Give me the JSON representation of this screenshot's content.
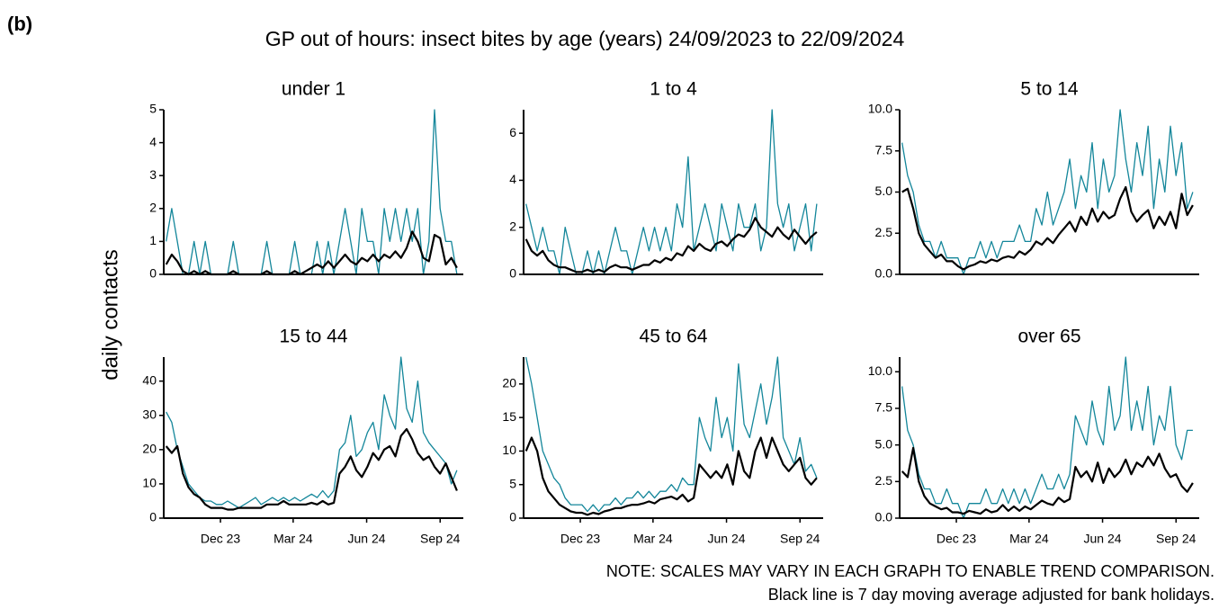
{
  "figure": {
    "panel_label": "(b)",
    "title": "GP out of hours: insect bites by age (years) 24/09/2023 to 22/09/2024",
    "y_label": "daily contacts",
    "notes": [
      "NOTE: SCALES MAY VARY IN EACH GRAPH TO ENABLE TREND COMPARISON.",
      "Black line is 7 day moving average adjusted for bank holidays."
    ]
  },
  "chart_data": [
    {
      "type": "line",
      "title": "under 1",
      "xlim": [
        -3,
        372
      ],
      "ylim": [
        0,
        5
      ],
      "yticks": [
        0,
        1,
        2,
        3,
        4,
        5
      ],
      "x": [
        0,
        7,
        14,
        21,
        28,
        35,
        42,
        49,
        56,
        63,
        70,
        77,
        84,
        91,
        98,
        105,
        112,
        119,
        126,
        133,
        140,
        147,
        154,
        161,
        168,
        175,
        182,
        189,
        196,
        203,
        210,
        217,
        224,
        231,
        238,
        245,
        252,
        259,
        266,
        273,
        280,
        287,
        294,
        301,
        308,
        315,
        322,
        329,
        336,
        343,
        350,
        357,
        364
      ],
      "series": [
        {
          "color": "#13869a",
          "values": [
            1,
            2,
            1,
            0,
            0,
            1,
            0,
            1,
            0,
            0,
            0,
            0,
            1,
            0,
            0,
            0,
            0,
            0,
            1,
            0,
            0,
            0,
            0,
            1,
            0,
            0,
            0,
            1,
            0,
            1,
            0,
            1,
            2,
            1,
            0,
            2,
            1,
            1,
            0,
            2,
            1,
            2,
            1,
            2,
            1,
            2,
            0,
            1,
            5,
            2,
            1,
            1,
            0
          ]
        },
        {
          "color": "#000000",
          "values": [
            0.3,
            0.6,
            0.4,
            0.1,
            0,
            0.1,
            0,
            0.1,
            0,
            0,
            0,
            0,
            0.1,
            0,
            0,
            0,
            0,
            0,
            0.1,
            0,
            0,
            0,
            0,
            0.1,
            0,
            0.1,
            0.2,
            0.3,
            0.2,
            0.4,
            0.2,
            0.4,
            0.6,
            0.4,
            0.3,
            0.5,
            0.4,
            0.6,
            0.4,
            0.6,
            0.5,
            0.7,
            0.5,
            0.8,
            1.3,
            1.0,
            0.5,
            0.4,
            1.2,
            1.1,
            0.3,
            0.5,
            0.2
          ]
        }
      ]
    },
    {
      "type": "line",
      "title": "1 to 4",
      "xlim": [
        -3,
        372
      ],
      "ylim": [
        0,
        7
      ],
      "yticks": [
        0,
        2,
        4,
        6
      ],
      "x": [
        0,
        7,
        14,
        21,
        28,
        35,
        42,
        49,
        56,
        63,
        70,
        77,
        84,
        91,
        98,
        105,
        112,
        119,
        126,
        133,
        140,
        147,
        154,
        161,
        168,
        175,
        182,
        189,
        196,
        203,
        210,
        217,
        224,
        231,
        238,
        245,
        252,
        259,
        266,
        273,
        280,
        287,
        294,
        301,
        308,
        315,
        322,
        329,
        336,
        343,
        350,
        357,
        364
      ],
      "series": [
        {
          "color": "#13869a",
          "values": [
            3,
            2,
            1,
            2,
            1,
            1,
            0,
            2,
            1,
            0,
            0,
            1,
            0,
            1,
            0,
            1,
            2,
            1,
            1,
            0,
            1,
            2,
            1,
            2,
            1,
            2,
            1,
            3,
            2,
            5,
            1,
            2,
            3,
            2,
            1,
            3,
            2,
            1,
            3,
            2,
            2,
            3,
            1,
            2,
            7,
            3,
            2,
            3,
            1,
            2,
            3,
            1,
            3
          ]
        },
        {
          "color": "#000000",
          "values": [
            1.5,
            1.0,
            0.8,
            1.0,
            0.6,
            0.4,
            0.3,
            0.3,
            0.2,
            0.1,
            0.1,
            0.2,
            0.1,
            0.2,
            0.1,
            0.3,
            0.4,
            0.3,
            0.3,
            0.2,
            0.3,
            0.4,
            0.4,
            0.6,
            0.5,
            0.7,
            0.6,
            0.9,
            0.8,
            1.2,
            1.0,
            1.3,
            1.1,
            1.0,
            1.3,
            1.4,
            1.2,
            1.5,
            1.7,
            1.6,
            1.9,
            2.4,
            2.0,
            1.8,
            1.6,
            2.0,
            1.7,
            1.5,
            1.9,
            1.6,
            1.3,
            1.6,
            1.8
          ]
        }
      ]
    },
    {
      "type": "line",
      "title": "5 to 14",
      "xlim": [
        -3,
        372
      ],
      "ylim": [
        0,
        10
      ],
      "yticks": [
        {
          "value": 0,
          "label": "0.0"
        },
        2.5,
        {
          "value": 5,
          "label": "5.0"
        },
        7.5,
        {
          "value": 10,
          "label": "10.0"
        }
      ],
      "x": [
        0,
        7,
        14,
        21,
        28,
        35,
        42,
        49,
        56,
        63,
        70,
        77,
        84,
        91,
        98,
        105,
        112,
        119,
        126,
        133,
        140,
        147,
        154,
        161,
        168,
        175,
        182,
        189,
        196,
        203,
        210,
        217,
        224,
        231,
        238,
        245,
        252,
        259,
        266,
        273,
        280,
        287,
        294,
        301,
        308,
        315,
        322,
        329,
        336,
        343,
        350,
        357,
        364
      ],
      "series": [
        {
          "color": "#13869a",
          "values": [
            8,
            6,
            5,
            3,
            2,
            2,
            1,
            2,
            1,
            1,
            1,
            0,
            1,
            1,
            2,
            1,
            2,
            1,
            2,
            2,
            2,
            3,
            2,
            2,
            4,
            3,
            5,
            3,
            4,
            5,
            7,
            4,
            6,
            5,
            8,
            4,
            7,
            5,
            6,
            10,
            7,
            5,
            8,
            6,
            9,
            4,
            7,
            5,
            9,
            6,
            8,
            4,
            5
          ]
        },
        {
          "color": "#000000",
          "values": [
            5.0,
            5.2,
            4.0,
            2.5,
            1.8,
            1.4,
            1.0,
            1.2,
            0.8,
            0.8,
            0.5,
            0.3,
            0.5,
            0.6,
            0.8,
            0.7,
            0.9,
            0.8,
            1.0,
            1.1,
            1.0,
            1.4,
            1.2,
            1.5,
            2.0,
            1.8,
            2.2,
            1.9,
            2.4,
            2.8,
            3.2,
            2.6,
            3.5,
            3.0,
            4.0,
            3.2,
            3.8,
            3.4,
            3.6,
            4.6,
            5.3,
            3.8,
            3.2,
            3.6,
            3.9,
            2.8,
            3.5,
            3.0,
            3.8,
            2.8,
            4.9,
            3.6,
            4.2
          ]
        }
      ]
    },
    {
      "type": "line",
      "title": "15 to 44",
      "xlim": [
        -3,
        372
      ],
      "ylim": [
        0,
        47
      ],
      "yticks": [
        0,
        10,
        20,
        30,
        40
      ],
      "xticks": [
        {
          "value": 68,
          "label": "Dec 23"
        },
        {
          "value": 159,
          "label": "Mar 24"
        },
        {
          "value": 251,
          "label": "Jun 24"
        },
        {
          "value": 343,
          "label": "Sep 24"
        }
      ],
      "x": [
        0,
        7,
        14,
        21,
        28,
        35,
        42,
        49,
        56,
        63,
        70,
        77,
        84,
        91,
        98,
        105,
        112,
        119,
        126,
        133,
        140,
        147,
        154,
        161,
        168,
        175,
        182,
        189,
        196,
        203,
        210,
        217,
        224,
        231,
        238,
        245,
        252,
        259,
        266,
        273,
        280,
        287,
        294,
        301,
        308,
        315,
        322,
        329,
        336,
        343,
        350,
        357,
        364
      ],
      "series": [
        {
          "color": "#13869a",
          "values": [
            31,
            28,
            20,
            15,
            10,
            8,
            6,
            5,
            5,
            4,
            4,
            5,
            4,
            3,
            4,
            5,
            6,
            4,
            5,
            6,
            5,
            6,
            5,
            6,
            5,
            6,
            7,
            6,
            8,
            6,
            8,
            20,
            22,
            30,
            18,
            20,
            25,
            28,
            20,
            36,
            30,
            26,
            47,
            32,
            28,
            40,
            25,
            22,
            20,
            18,
            16,
            10,
            14
          ]
        },
        {
          "color": "#000000",
          "values": [
            21,
            19,
            21,
            13,
            9,
            7,
            6,
            4,
            3,
            3,
            3,
            2.5,
            2.5,
            3,
            3,
            3,
            3,
            3,
            4,
            4,
            4,
            5,
            4,
            4,
            4,
            4,
            4.5,
            4,
            5,
            4,
            4.5,
            13,
            15,
            18,
            14,
            12,
            15,
            19,
            17,
            20,
            21,
            18,
            24,
            26,
            23,
            19,
            17,
            18,
            15,
            13,
            16,
            12,
            8
          ]
        }
      ]
    },
    {
      "type": "line",
      "title": "45 to 64",
      "xlim": [
        -3,
        372
      ],
      "ylim": [
        0,
        24
      ],
      "yticks": [
        0,
        5,
        10,
        15,
        20
      ],
      "xticks": [
        {
          "value": 68,
          "label": "Dec 23"
        },
        {
          "value": 159,
          "label": "Mar 24"
        },
        {
          "value": 251,
          "label": "Jun 24"
        },
        {
          "value": 343,
          "label": "Sep 24"
        }
      ],
      "x": [
        0,
        7,
        14,
        21,
        28,
        35,
        42,
        49,
        56,
        63,
        70,
        77,
        84,
        91,
        98,
        105,
        112,
        119,
        126,
        133,
        140,
        147,
        154,
        161,
        168,
        175,
        182,
        189,
        196,
        203,
        210,
        217,
        224,
        231,
        238,
        245,
        252,
        259,
        266,
        273,
        280,
        287,
        294,
        301,
        308,
        315,
        322,
        329,
        336,
        343,
        350,
        357,
        364
      ],
      "series": [
        {
          "color": "#13869a",
          "values": [
            24,
            20,
            15,
            10,
            8,
            6,
            5,
            3,
            2,
            2,
            2,
            1,
            2,
            1,
            2,
            2,
            3,
            2,
            3,
            3,
            4,
            3,
            4,
            3,
            4,
            4,
            5,
            4,
            6,
            5,
            5,
            15,
            12,
            10,
            18,
            12,
            15,
            10,
            23,
            14,
            12,
            16,
            20,
            14,
            18,
            24,
            12,
            10,
            8,
            12,
            7,
            8,
            6
          ]
        },
        {
          "color": "#000000",
          "values": [
            10,
            12,
            10,
            6,
            4,
            3,
            2,
            1.5,
            1,
            0.8,
            0.8,
            0.5,
            0.8,
            0.6,
            1,
            1.2,
            1.5,
            1.5,
            1.8,
            2,
            2,
            2.2,
            2.5,
            2.2,
            2.8,
            3,
            3.2,
            2.8,
            3.5,
            2.5,
            3,
            8,
            7,
            6,
            7,
            6,
            8,
            5,
            10,
            7,
            6,
            10,
            12,
            9,
            12,
            10,
            8,
            7,
            8,
            9,
            6,
            5,
            6
          ]
        }
      ]
    },
    {
      "type": "line",
      "title": "over 65",
      "xlim": [
        -3,
        372
      ],
      "ylim": [
        0,
        11
      ],
      "yticks": [
        {
          "value": 0,
          "label": "0.0"
        },
        2.5,
        {
          "value": 5,
          "label": "5.0"
        },
        7.5,
        {
          "value": 10,
          "label": "10.0"
        }
      ],
      "xticks": [
        {
          "value": 68,
          "label": "Dec 23"
        },
        {
          "value": 159,
          "label": "Mar 24"
        },
        {
          "value": 251,
          "label": "Jun 24"
        },
        {
          "value": 343,
          "label": "Sep 24"
        }
      ],
      "x": [
        0,
        7,
        14,
        21,
        28,
        35,
        42,
        49,
        56,
        63,
        70,
        77,
        84,
        91,
        98,
        105,
        112,
        119,
        126,
        133,
        140,
        147,
        154,
        161,
        168,
        175,
        182,
        189,
        196,
        203,
        210,
        217,
        224,
        231,
        238,
        245,
        252,
        259,
        266,
        273,
        280,
        287,
        294,
        301,
        308,
        315,
        322,
        329,
        336,
        343,
        350,
        357,
        364
      ],
      "series": [
        {
          "color": "#13869a",
          "values": [
            9,
            6,
            5,
            3,
            2,
            2,
            1,
            1,
            2,
            1,
            1,
            0,
            1,
            1,
            1,
            2,
            1,
            1,
            2,
            1,
            2,
            1,
            2,
            1,
            2,
            3,
            2,
            2,
            3,
            2,
            3,
            7,
            6,
            5,
            8,
            6,
            5,
            9,
            6,
            7,
            11,
            6,
            8,
            6,
            9,
            5,
            7,
            6,
            9,
            5,
            4,
            6,
            6
          ]
        },
        {
          "color": "#000000",
          "values": [
            3.2,
            2.8,
            4.8,
            2.5,
            1.5,
            1.0,
            0.8,
            0.6,
            0.7,
            0.4,
            0.4,
            0.3,
            0.5,
            0.4,
            0.3,
            0.6,
            0.4,
            0.5,
            0.9,
            0.5,
            0.8,
            0.5,
            0.8,
            0.6,
            0.9,
            1.2,
            1.0,
            0.9,
            1.4,
            1.1,
            1.3,
            3.5,
            2.8,
            3.2,
            2.5,
            3.8,
            2.4,
            3.4,
            2.8,
            3.2,
            4.0,
            3.0,
            3.8,
            3.5,
            4.2,
            3.6,
            4.4,
            3.4,
            2.8,
            3.0,
            2.2,
            1.8,
            2.4
          ]
        }
      ]
    }
  ]
}
